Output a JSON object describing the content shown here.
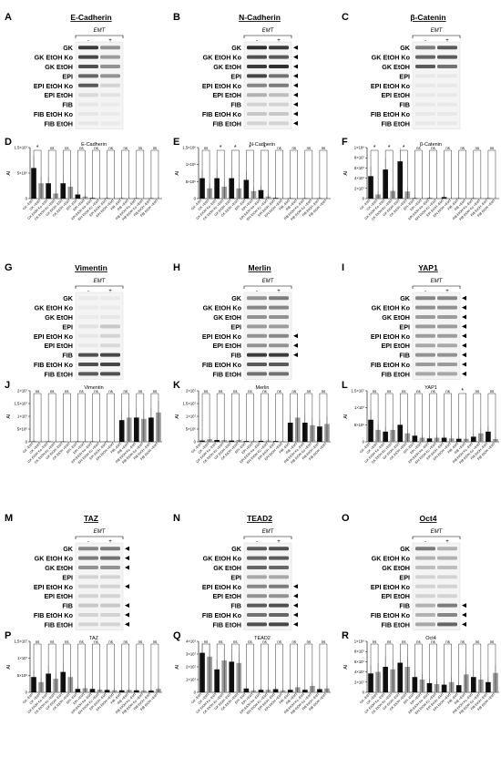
{
  "panels": [
    {
      "letter": "A",
      "type": "blot",
      "title": "E-Cadherin",
      "emt": "EMT",
      "minus": "-",
      "plus": "+",
      "rows": [
        "GK",
        "GK EtOH Ko",
        "GK EtOH",
        "EPI",
        "EPI EtOH Ko",
        "EPI EtOH",
        "FIB",
        "FIB EtOH Ko",
        "FIB EtOH"
      ],
      "intensity": [
        [
          0.85,
          0.45
        ],
        [
          0.8,
          0.4
        ],
        [
          0.75,
          0.45
        ],
        [
          0.65,
          0.45
        ],
        [
          0.7,
          0.15
        ],
        [
          0.12,
          0.08
        ],
        [
          0.06,
          0.04
        ],
        [
          0.06,
          0.04
        ],
        [
          0.06,
          0.04
        ]
      ],
      "arrows": []
    },
    {
      "letter": "B",
      "type": "blot",
      "title": "N-Cadherin",
      "emt": "EMT",
      "minus": "-",
      "plus": "+",
      "rows": [
        "GK",
        "GK EtOH Ko",
        "GK EtOH",
        "EPI",
        "EPI EtOH Ko",
        "EPI EtOH",
        "FIB",
        "FIB EtOH Ko",
        "FIB EtOH"
      ],
      "intensity": [
        [
          0.9,
          0.85
        ],
        [
          0.75,
          0.7
        ],
        [
          0.85,
          0.9
        ],
        [
          0.8,
          0.6
        ],
        [
          0.5,
          0.55
        ],
        [
          0.3,
          0.25
        ],
        [
          0.15,
          0.15
        ],
        [
          0.2,
          0.2
        ],
        [
          0.15,
          0.15
        ]
      ],
      "arrows": [
        0,
        1,
        2,
        3,
        4,
        5,
        6,
        7,
        8
      ]
    },
    {
      "letter": "C",
      "type": "blot",
      "title": "β-Catenin",
      "emt": "EMT",
      "minus": "-",
      "plus": "+",
      "rows": [
        "GK",
        "GK EtOH Ko",
        "GK EtOH",
        "EPI",
        "EPI EtOH Ko",
        "EPI EtOH",
        "FIB",
        "FIB EtOH Ko",
        "FIB EtOH"
      ],
      "intensity": [
        [
          0.55,
          0.7
        ],
        [
          0.65,
          0.7
        ],
        [
          0.7,
          0.6
        ],
        [
          0.05,
          0.05
        ],
        [
          0.05,
          0.05
        ],
        [
          0.05,
          0.05
        ],
        [
          0.05,
          0.05
        ],
        [
          0.05,
          0.05
        ],
        [
          0.05,
          0.05
        ]
      ],
      "arrows": []
    },
    {
      "letter": "G",
      "type": "blot",
      "title": "Vimentin",
      "emt": "EMT",
      "minus": "-",
      "plus": "+",
      "rows": [
        "GK",
        "GK EtOH Ko",
        "GK EtOH",
        "EPI",
        "EPI EtOH Ko",
        "EPI EtOH",
        "FIB",
        "FIB EtOH Ko",
        "FIB EtOH"
      ],
      "intensity": [
        [
          0.04,
          0.04
        ],
        [
          0.04,
          0.04
        ],
        [
          0.04,
          0.06
        ],
        [
          0.08,
          0.2
        ],
        [
          0.06,
          0.15
        ],
        [
          0.05,
          0.12
        ],
        [
          0.75,
          0.8
        ],
        [
          0.75,
          0.8
        ],
        [
          0.7,
          0.75
        ]
      ],
      "arrows": []
    },
    {
      "letter": "H",
      "type": "blot",
      "title": "Merlin",
      "emt": "EMT",
      "minus": "-",
      "plus": "+",
      "rows": [
        "GK",
        "GK EtOH Ko",
        "GK EtOH",
        "EPI",
        "EPI EtOH Ko",
        "EPI EtOH",
        "FIB",
        "FIB EtOH Ko",
        "FIB EtOH"
      ],
      "intensity": [
        [
          0.45,
          0.55
        ],
        [
          0.5,
          0.5
        ],
        [
          0.45,
          0.45
        ],
        [
          0.4,
          0.4
        ],
        [
          0.45,
          0.5
        ],
        [
          0.45,
          0.45
        ],
        [
          0.85,
          0.85
        ],
        [
          0.7,
          0.7
        ],
        [
          0.6,
          0.6
        ]
      ],
      "arrows": [
        4,
        5,
        6
      ]
    },
    {
      "letter": "I",
      "type": "blot",
      "title": "YAP1",
      "emt": "EMT",
      "minus": "-",
      "plus": "+",
      "rows": [
        "GK",
        "GK EtOH Ko",
        "GK EtOH",
        "EPI",
        "EPI EtOH Ko",
        "EPI EtOH",
        "FIB",
        "FIB EtOH Ko",
        "FIB EtOH"
      ],
      "intensity": [
        [
          0.5,
          0.5
        ],
        [
          0.45,
          0.45
        ],
        [
          0.4,
          0.4
        ],
        [
          0.4,
          0.4
        ],
        [
          0.4,
          0.4
        ],
        [
          0.35,
          0.35
        ],
        [
          0.45,
          0.45
        ],
        [
          0.4,
          0.4
        ],
        [
          0.35,
          0.35
        ]
      ],
      "arrows": [
        0,
        1,
        2,
        3,
        4,
        5,
        6,
        7,
        8
      ]
    },
    {
      "letter": "M",
      "type": "blot",
      "title": "TAZ",
      "emt": "EMT",
      "minus": "-",
      "plus": "+",
      "rows": [
        "GK",
        "GK EtOH Ko",
        "GK EtOH",
        "EPI",
        "EPI EtOH Ko",
        "EPI EtOH",
        "FIB",
        "FIB EtOH Ko",
        "FIB EtOH"
      ],
      "intensity": [
        [
          0.5,
          0.55
        ],
        [
          0.55,
          0.6
        ],
        [
          0.45,
          0.45
        ],
        [
          0.15,
          0.15
        ],
        [
          0.15,
          0.15
        ],
        [
          0.15,
          0.15
        ],
        [
          0.2,
          0.2
        ],
        [
          0.15,
          0.15
        ],
        [
          0.15,
          0.15
        ]
      ],
      "arrows": [
        0,
        1,
        2,
        4,
        6,
        7,
        8
      ]
    },
    {
      "letter": "N",
      "type": "blot",
      "title": "TEAD2",
      "emt": "EMT",
      "minus": "-",
      "plus": "+",
      "rows": [
        "GK",
        "GK EtOH Ko",
        "GK EtOH",
        "EPI",
        "EPI EtOH Ko",
        "EPI EtOH",
        "FIB",
        "FIB EtOH Ko",
        "FIB EtOH"
      ],
      "intensity": [
        [
          0.7,
          0.75
        ],
        [
          0.65,
          0.7
        ],
        [
          0.65,
          0.65
        ],
        [
          0.35,
          0.35
        ],
        [
          0.5,
          0.55
        ],
        [
          0.45,
          0.45
        ],
        [
          0.7,
          0.75
        ],
        [
          0.6,
          0.65
        ],
        [
          0.75,
          0.8
        ]
      ],
      "arrows": [
        4,
        5,
        6,
        7,
        8
      ]
    },
    {
      "letter": "O",
      "type": "blot",
      "title": "Oct4",
      "emt": "EMT",
      "minus": "-",
      "plus": "+",
      "rows": [
        "GK",
        "GK EtOH Ko",
        "GK EtOH",
        "EPI",
        "EPI EtOH Ko",
        "EPI EtOH",
        "FIB",
        "FIB EtOH Ko",
        "FIB EtOH"
      ],
      "intensity": [
        [
          0.55,
          0.3
        ],
        [
          0.3,
          0.3
        ],
        [
          0.25,
          0.25
        ],
        [
          0.15,
          0.15
        ],
        [
          0.15,
          0.15
        ],
        [
          0.15,
          0.15
        ],
        [
          0.3,
          0.55
        ],
        [
          0.3,
          0.5
        ],
        [
          0.35,
          0.65
        ]
      ],
      "arrows": [
        6,
        7,
        8
      ]
    }
  ],
  "chart_data": [
    {
      "letter": "D",
      "type": "bar",
      "title": "E-Cadherin",
      "ylabel": "AI",
      "yticks": [
        "0",
        "5×10⁶",
        "1.5×10⁷"
      ],
      "ylim": [
        0,
        15000000
      ],
      "categories": [
        "GK -EMT",
        "GK +EMT",
        "GK EtOH Ko -EMT",
        "GK EtOH Ko +EMT",
        "GK EtOH -EMT",
        "GK EtOH +EMT",
        "EPI -EMT",
        "EPI +EMT",
        "EPI EtOH Ko -EMT",
        "EPI EtOH Ko +EMT",
        "EPI EtOH -EMT",
        "EPI EtOH +EMT",
        "FIB -EMT",
        "FIB +EMT",
        "FIB EtOH Ko -EMT",
        "FIB EtOH Ko +EMT",
        "FIB EtOH -EMT",
        "FIB EtOH +EMT"
      ],
      "values": [
        9000000,
        4500000,
        4500000,
        1500000,
        4500000,
        3500000,
        1200000,
        600000,
        200000,
        100000,
        100000,
        100000,
        0,
        0,
        0,
        0,
        0,
        0
      ],
      "sig": [
        "*",
        "ns",
        "ns",
        "ns",
        "ns",
        "ns",
        "ns",
        "ns",
        "ns"
      ]
    },
    {
      "letter": "E",
      "type": "bar",
      "title": "N-Cadherin",
      "ylabel": "AI",
      "yticks": [
        "0",
        "5×10⁵",
        "1×10⁶",
        "1.5×10⁶"
      ],
      "ylim": [
        0,
        1500000
      ],
      "categories": [
        "GK -EMT",
        "GK +EMT",
        "GK EtOH Ko -EMT",
        "GK EtOH Ko +EMT",
        "GK EtOH -EMT",
        "GK EtOH +EMT",
        "EPI -EMT",
        "EPI +EMT",
        "EPI EtOH Ko -EMT",
        "EPI EtOH Ko +EMT",
        "EPI EtOH -EMT",
        "EPI EtOH +EMT",
        "FIB -EMT",
        "FIB +EMT",
        "FIB EtOH Ko -EMT",
        "FIB EtOH Ko +EMT",
        "FIB EtOH -EMT",
        "FIB EtOH +EMT"
      ],
      "values": [
        600000,
        300000,
        600000,
        350000,
        600000,
        300000,
        550000,
        220000,
        250000,
        60000,
        20000,
        10000,
        5000,
        5000,
        5000,
        5000,
        5000,
        5000
      ],
      "sig": [
        "ns",
        "*",
        "*",
        "*",
        "*",
        "ns",
        "ns",
        "ns",
        "ns"
      ]
    },
    {
      "letter": "F",
      "type": "bar",
      "title": "β-Catenin",
      "ylabel": "AI",
      "yticks": [
        "0",
        "2×10⁷",
        "4×10⁷",
        "6×10⁷",
        "8×10⁷",
        "1×10⁸"
      ],
      "ylim": [
        0,
        100000000
      ],
      "categories": [
        "GK -EMT",
        "GK +EMT",
        "GK EtOH Ko -EMT",
        "GK EtOH Ko +EMT",
        "GK EtOH -EMT",
        "GK EtOH +EMT",
        "EPI -EMT",
        "EPI +EMT",
        "EPI EtOH Ko -EMT",
        "EPI EtOH Ko +EMT",
        "EPI EtOH -EMT",
        "EPI EtOH +EMT",
        "FIB -EMT",
        "FIB +EMT",
        "FIB EtOH Ko -EMT",
        "FIB EtOH Ko +EMT",
        "FIB EtOH -EMT",
        "FIB EtOH +EMT"
      ],
      "values": [
        44000000,
        8000000,
        57000000,
        15000000,
        73000000,
        14000000,
        1000000,
        1000000,
        1000000,
        1000000,
        3000000,
        1000000,
        500000,
        500000,
        500000,
        500000,
        500000,
        500000
      ],
      "sig": [
        "*",
        "*",
        "*",
        "ns",
        "ns",
        "ns",
        "ns",
        "ns",
        "ns"
      ]
    },
    {
      "letter": "J",
      "type": "bar",
      "title": "Vimentin",
      "ylabel": "AI",
      "yticks": [
        "0",
        "5×10⁶",
        "1×10⁷",
        "1.5×10⁷",
        "2×10⁷"
      ],
      "ylim": [
        0,
        20000000
      ],
      "categories": [
        "GK -EMT",
        "GK +EMT",
        "GK EtOH Ko -EMT",
        "GK EtOH Ko +EMT",
        "GK EtOH -EMT",
        "GK EtOH +EMT",
        "EPI -EMT",
        "EPI +EMT",
        "EPI EtOH Ko -EMT",
        "EPI EtOH Ko +EMT",
        "EPI EtOH -EMT",
        "EPI EtOH +EMT",
        "FIB -EMT",
        "FIB +EMT",
        "FIB EtOH Ko -EMT",
        "FIB EtOH Ko +EMT",
        "FIB EtOH -EMT",
        "FIB EtOH +EMT"
      ],
      "values": [
        50000,
        50000,
        50000,
        50000,
        50000,
        50000,
        100000,
        300000,
        100000,
        200000,
        100000,
        200000,
        8500000,
        9500000,
        9500000,
        9000000,
        9500000,
        11500000
      ],
      "sig": [
        "ns",
        "ns",
        "ns",
        "ns",
        "ns",
        "ns",
        "ns",
        "ns",
        "ns"
      ]
    },
    {
      "letter": "K",
      "type": "bar",
      "title": "Merlin",
      "ylabel": "AI",
      "yticks": [
        "0",
        "5×10⁶",
        "1×10⁷",
        "1.5×10⁷",
        "2×10⁷"
      ],
      "ylim": [
        0,
        20000000
      ],
      "categories": [
        "GK -EMT",
        "GK +EMT",
        "GK EtOH Ko -EMT",
        "GK EtOH Ko +EMT",
        "GK EtOH -EMT",
        "GK EtOH +EMT",
        "EPI -EMT",
        "EPI +EMT",
        "EPI EtOH Ko -EMT",
        "EPI EtOH Ko +EMT",
        "EPI EtOH -EMT",
        "EPI EtOH +EMT",
        "FIB -EMT",
        "FIB +EMT",
        "FIB EtOH Ko -EMT",
        "FIB EtOH Ko +EMT",
        "FIB EtOH -EMT",
        "FIB EtOH +EMT"
      ],
      "values": [
        500000,
        1000000,
        700000,
        700000,
        500000,
        700000,
        300000,
        400000,
        400000,
        500000,
        300000,
        300000,
        7500000,
        9500000,
        7500000,
        6500000,
        6000000,
        7000000
      ],
      "sig": [
        "ns",
        "ns",
        "ns",
        "ns",
        "ns",
        "ns",
        "ns",
        "ns",
        "ns"
      ]
    },
    {
      "letter": "L",
      "type": "bar",
      "title": "YAP1",
      "ylabel": "AI",
      "yticks": [
        "0",
        "5×10⁶",
        "1×10⁷",
        "1.5×10⁷"
      ],
      "ylim": [
        0,
        15000000
      ],
      "categories": [
        "GK -EMT",
        "GK +EMT",
        "GK EtOH Ko -EMT",
        "GK EtOH Ko +EMT",
        "GK EtOH -EMT",
        "GK EtOH +EMT",
        "EPI -EMT",
        "EPI +EMT",
        "EPI EtOH Ko -EMT",
        "EPI EtOH Ko +EMT",
        "EPI EtOH -EMT",
        "EPI EtOH +EMT",
        "FIB -EMT",
        "FIB +EMT",
        "FIB EtOH Ko -EMT",
        "FIB EtOH Ko +EMT",
        "FIB EtOH -EMT",
        "FIB EtOH +EMT"
      ],
      "values": [
        6500000,
        3500000,
        3000000,
        3500000,
        5000000,
        2500000,
        1800000,
        1200000,
        1000000,
        1200000,
        1200000,
        1000000,
        900000,
        900000,
        1500000,
        2500000,
        3000000,
        800000
      ],
      "sig": [
        "ns",
        "ns",
        "ns",
        "ns",
        "ns",
        "ns",
        "*",
        "ns",
        "ns"
      ]
    },
    {
      "letter": "P",
      "type": "bar",
      "title": "TAZ",
      "ylabel": "AI",
      "yticks": [
        "0",
        "5×10⁶",
        "1×10⁷",
        "1.5×10⁷"
      ],
      "ylim": [
        0,
        15000000
      ],
      "categories": [
        "GK -EMT",
        "GK +EMT",
        "GK EtOH Ko -EMT",
        "GK EtOH Ko +EMT",
        "GK EtOH -EMT",
        "GK EtOH +EMT",
        "EPI -EMT",
        "EPI +EMT",
        "EPI EtOH Ko -EMT",
        "EPI EtOH Ko +EMT",
        "EPI EtOH -EMT",
        "EPI EtOH +EMT",
        "FIB -EMT",
        "FIB +EMT",
        "FIB EtOH Ko -EMT",
        "FIB EtOH Ko +EMT",
        "FIB EtOH -EMT",
        "FIB EtOH +EMT"
      ],
      "values": [
        4500000,
        3000000,
        5500000,
        4000000,
        6000000,
        4500000,
        1000000,
        1200000,
        1000000,
        800000,
        700000,
        600000,
        600000,
        700000,
        600000,
        500000,
        500000,
        1000000
      ],
      "sig": [
        "ns",
        "ns",
        "ns",
        "ns",
        "ns",
        "ns",
        "ns",
        "ns",
        "ns"
      ]
    },
    {
      "letter": "Q",
      "type": "bar",
      "title": "TEAD2",
      "ylabel": "AI",
      "yticks": [
        "0",
        "1×10⁷",
        "2×10⁷",
        "3×10⁷",
        "4×10⁷"
      ],
      "ylim": [
        0,
        40000000
      ],
      "categories": [
        "GK -EMT",
        "GK +EMT",
        "GK EtOH Ko -EMT",
        "GK EtOH Ko +EMT",
        "GK EtOH -EMT",
        "GK EtOH +EMT",
        "EPI -EMT",
        "EPI +EMT",
        "EPI EtOH Ko -EMT",
        "EPI EtOH Ko +EMT",
        "EPI EtOH -EMT",
        "EPI EtOH +EMT",
        "FIB -EMT",
        "FIB +EMT",
        "FIB EtOH Ko -EMT",
        "FIB EtOH Ko +EMT",
        "FIB EtOH -EMT",
        "FIB EtOH +EMT"
      ],
      "values": [
        31000000,
        28000000,
        18000000,
        25000000,
        24000000,
        23000000,
        3000000,
        1500000,
        2000000,
        2000000,
        2500000,
        1500000,
        2000000,
        4000000,
        2000000,
        5000000,
        2500000,
        3000000
      ],
      "sig": [
        "ns",
        "ns",
        "ns",
        "ns",
        "ns",
        "ns",
        "ns",
        "ns",
        "ns"
      ]
    },
    {
      "letter": "R",
      "type": "bar",
      "title": "Oct4",
      "ylabel": "AI",
      "yticks": [
        "0",
        "2×10⁷",
        "4×10⁷",
        "6×10⁷",
        "8×10⁷",
        "1×10⁸"
      ],
      "ylim": [
        0,
        100000000
      ],
      "categories": [
        "GK -EMT",
        "GK +EMT",
        "GK EtOH Ko -EMT",
        "GK EtOH Ko +EMT",
        "GK EtOH -EMT",
        "GK EtOH +EMT",
        "EPI -EMT",
        "EPI +EMT",
        "EPI EtOH Ko -EMT",
        "EPI EtOH Ko +EMT",
        "EPI EtOH -EMT",
        "EPI EtOH +EMT",
        "FIB -EMT",
        "FIB +EMT",
        "FIB EtOH Ko -EMT",
        "FIB EtOH Ko +EMT",
        "FIB EtOH -EMT",
        "FIB EtOH +EMT"
      ],
      "values": [
        37000000,
        40000000,
        50000000,
        45000000,
        58000000,
        50000000,
        30000000,
        25000000,
        18000000,
        16000000,
        15000000,
        20000000,
        14000000,
        35000000,
        30000000,
        25000000,
        20000000,
        38000000
      ],
      "sig": [
        "ns",
        "ns",
        "ns",
        "ns",
        "ns",
        "ns",
        "ns",
        "ns",
        "ns"
      ]
    }
  ],
  "colors": {
    "bar_minus": "#111111",
    "bar_plus": "#9a9a9a",
    "blot_bg": "#f4f4f4",
    "band": "#1a1a1a"
  }
}
